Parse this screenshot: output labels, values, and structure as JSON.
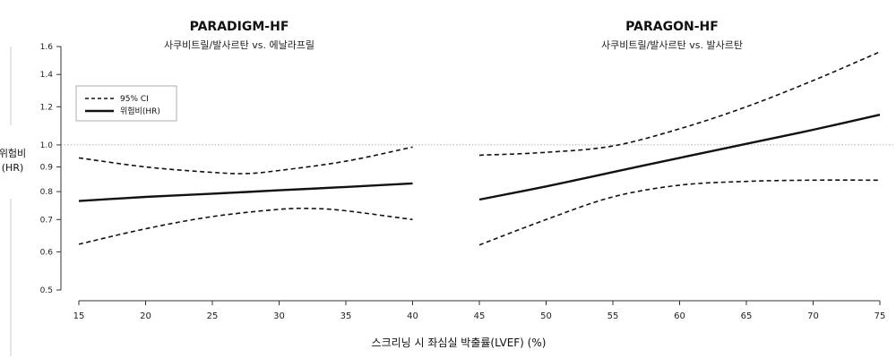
{
  "chart_data": [
    {
      "type": "line",
      "title": "PARADIGM-HF",
      "subtitle": "사쿠비트릴/발사르탄 vs. 에날라프릴",
      "xlim": [
        15,
        40
      ],
      "series": [
        {
          "name": "위험비(HR)",
          "style": "solid",
          "x": [
            15,
            20,
            25,
            30,
            35,
            40
          ],
          "y": [
            0.765,
            0.78,
            0.792,
            0.805,
            0.818,
            0.832
          ]
        },
        {
          "name": "95% CI",
          "style": "dashed",
          "x": [
            15,
            20,
            25,
            27.5,
            30,
            35,
            40
          ],
          "y": [
            0.94,
            0.9,
            0.877,
            0.872,
            0.885,
            0.925,
            0.99
          ]
        },
        {
          "name": "95% CI",
          "style": "dashed",
          "x": [
            15,
            20,
            25,
            30,
            32.5,
            35,
            40
          ],
          "y": [
            0.622,
            0.67,
            0.71,
            0.735,
            0.738,
            0.73,
            0.7
          ]
        }
      ]
    },
    {
      "type": "line",
      "title": "PARAGON-HF",
      "subtitle": "사쿠비트릴/발사르탄 vs. 발사르탄",
      "xlim": [
        45,
        75
      ],
      "series": [
        {
          "name": "위험비(HR)",
          "style": "solid",
          "x": [
            45,
            50,
            55,
            60,
            65,
            70,
            75
          ],
          "y": [
            0.77,
            0.82,
            0.878,
            0.94,
            1.005,
            1.075,
            1.155
          ]
        },
        {
          "name": "95% CI",
          "style": "dashed",
          "x": [
            45,
            50,
            55,
            60,
            65,
            70,
            75
          ],
          "y": [
            0.952,
            0.965,
            0.995,
            1.08,
            1.2,
            1.36,
            1.56
          ]
        },
        {
          "name": "95% CI",
          "style": "dashed",
          "x": [
            45,
            50,
            55,
            60,
            65,
            70,
            75
          ],
          "y": [
            0.62,
            0.7,
            0.78,
            0.825,
            0.84,
            0.845,
            0.845
          ]
        }
      ]
    }
  ],
  "axes": {
    "xlabel": "스크리닝 시 좌심실 박출률(LVEF) (%)",
    "ylabel_line1": "위험비",
    "ylabel_line2": "(HR)",
    "xlim": [
      15,
      75
    ],
    "ylim": [
      0.5,
      1.6
    ],
    "yscale": "log",
    "xticks": [
      15,
      20,
      25,
      30,
      35,
      40,
      45,
      50,
      55,
      60,
      65,
      70,
      75
    ],
    "yticks": [
      {
        "value": 0.5,
        "label": "0.5"
      },
      {
        "value": 0.6,
        "label": "0.6"
      },
      {
        "value": 0.7,
        "label": "0.7"
      },
      {
        "value": 0.8,
        "label": "0.8"
      },
      {
        "value": 0.9,
        "label": "0.9"
      },
      {
        "value": 1.0,
        "label": "1.0"
      },
      {
        "value": 1.2,
        "label": "1.2"
      },
      {
        "value": 1.4,
        "label": "1.4"
      },
      {
        "value": 1.6,
        "label": "1.6"
      }
    ],
    "reference_line": 1.0
  },
  "legend": {
    "placement": "top-left",
    "items": [
      {
        "label": "95% CI",
        "style": "dashed"
      },
      {
        "label": "위험비(HR)",
        "style": "solid"
      }
    ]
  }
}
